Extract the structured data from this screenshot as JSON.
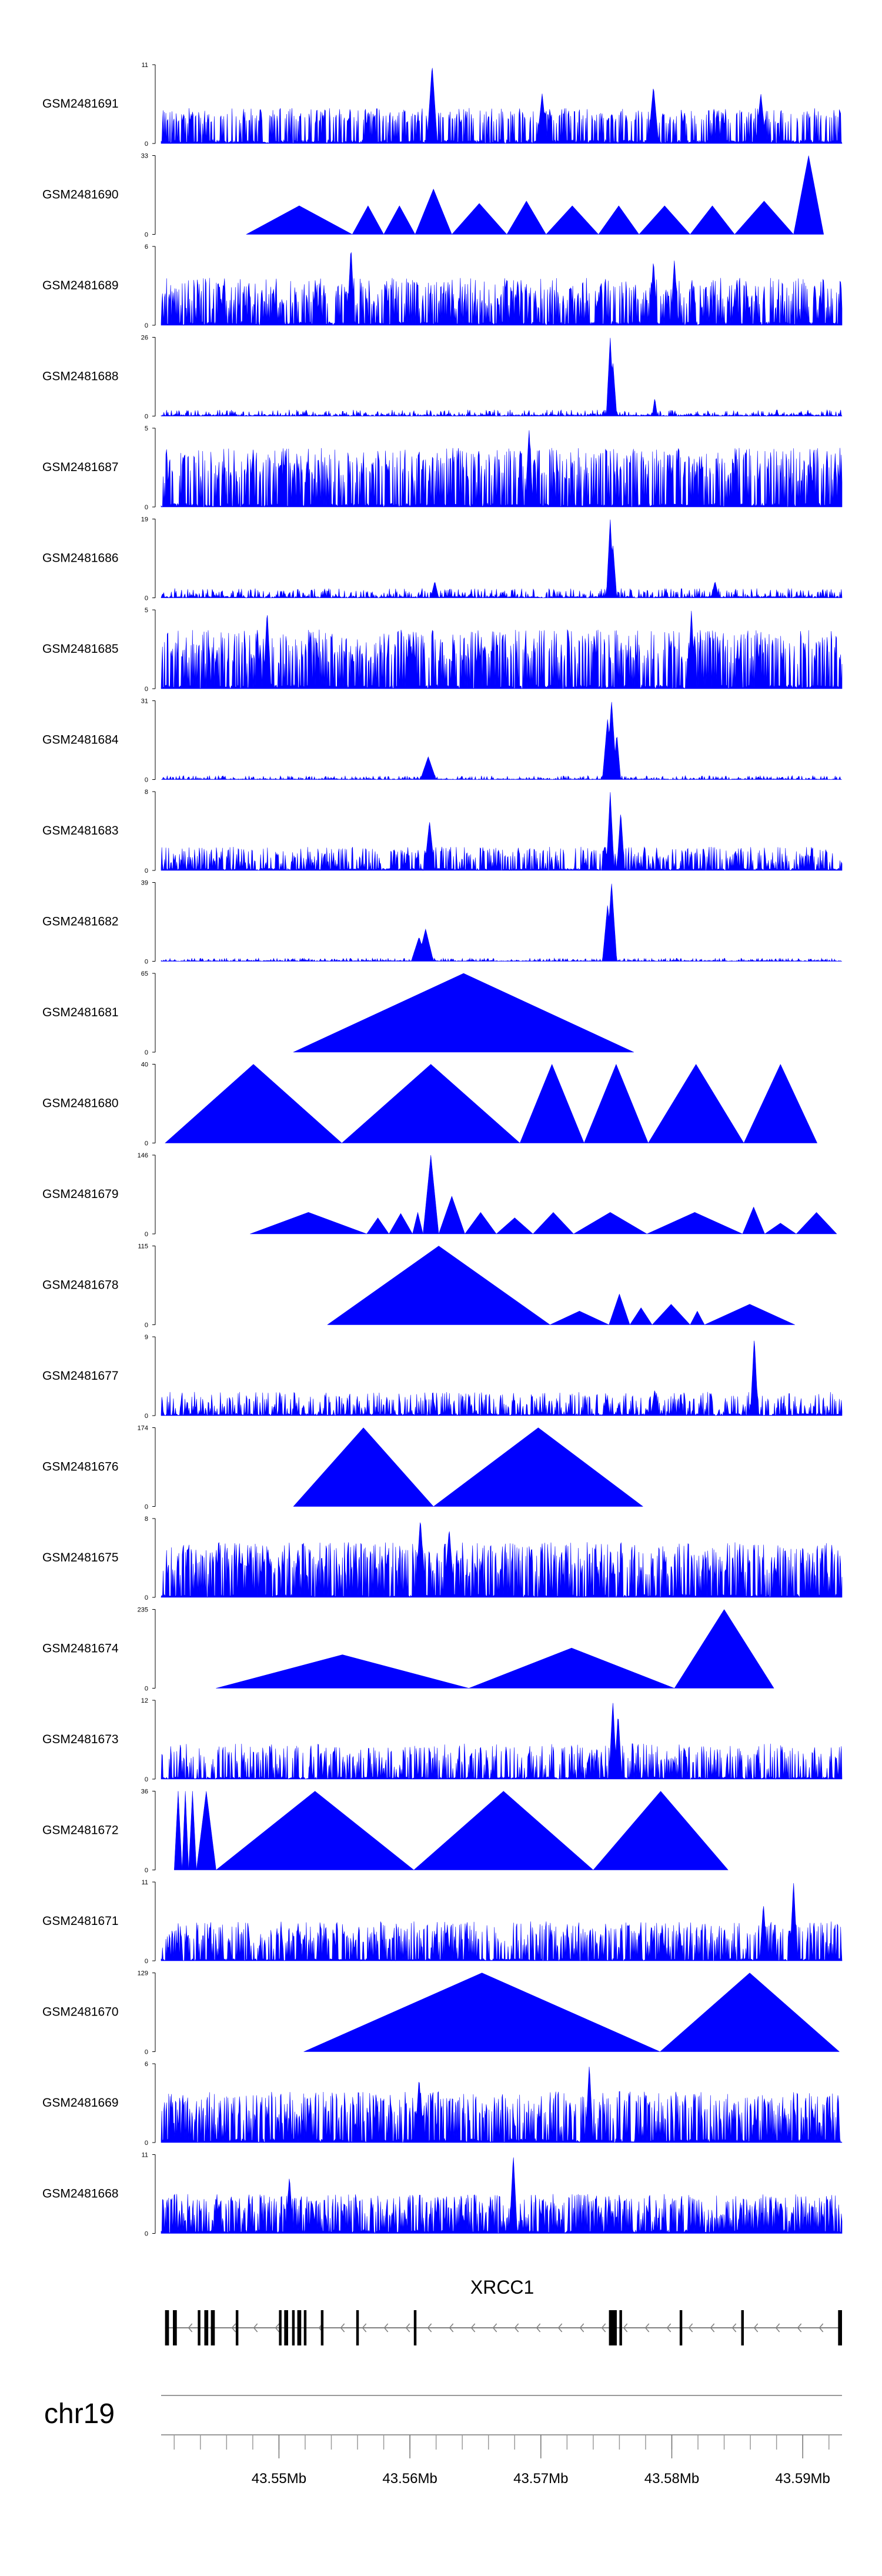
{
  "chart_data": {
    "type": "area",
    "title": "",
    "colors": {
      "fill": "#0000FF",
      "axis": "#000000",
      "gene": "#000000",
      "strand": "#808080"
    },
    "genome_axis": {
      "chromosome": "chr19",
      "range_mb": [
        43.541,
        43.593
      ],
      "labeled_ticks": [
        {
          "value": 43.55,
          "label": "43.55Mb"
        },
        {
          "value": 43.56,
          "label": "43.56Mb"
        },
        {
          "value": 43.57,
          "label": "43.57Mb"
        },
        {
          "value": 43.58,
          "label": "43.58Mb"
        },
        {
          "value": 43.59,
          "label": "43.59Mb"
        }
      ]
    },
    "gene": {
      "name": "XRCC1",
      "strand": "-",
      "start_mb": 43.5413,
      "end_mb": 43.5928,
      "exons_mb": [
        [
          43.5413,
          43.5416
        ],
        [
          43.5419,
          43.5422
        ],
        [
          43.5438,
          43.544
        ],
        [
          43.5443,
          43.5446
        ],
        [
          43.5448,
          43.5451
        ],
        [
          43.5467,
          43.5469
        ],
        [
          43.55,
          43.5502
        ],
        [
          43.5504,
          43.5507
        ],
        [
          43.551,
          43.5512
        ],
        [
          43.5514,
          43.5517
        ],
        [
          43.5519,
          43.5521
        ],
        [
          43.5532,
          43.5534
        ],
        [
          43.5559,
          43.5561
        ],
        [
          43.5603,
          43.5605
        ],
        [
          43.5752,
          43.5758
        ],
        [
          43.576,
          43.5762
        ],
        [
          43.5806,
          43.5808
        ],
        [
          43.5853,
          43.5855
        ],
        [
          43.5927,
          43.593
        ]
      ]
    },
    "tracks": [
      {
        "name": "GSM2481691",
        "ymax": 11,
        "nodata": [],
        "seed": 1691,
        "peaks": [
          [
            43.5617,
            11,
            0.0004
          ],
          [
            43.5701,
            7,
            0.0004
          ],
          [
            43.5786,
            8,
            0.0004
          ],
          [
            43.5868,
            7,
            0.0004
          ]
        ],
        "spikes": [
          0.25,
          0.45
        ],
        "density": 0.45,
        "base": 0.05
      },
      {
        "name": "GSM2481690",
        "ymax": 33,
        "nodata": [],
        "seed": 1690,
        "tri": [
          [
            43.5475,
            43.5556,
            12
          ],
          [
            43.5556,
            43.558,
            12
          ],
          [
            43.558,
            43.5604,
            12
          ],
          [
            43.5604,
            43.5632,
            19
          ],
          [
            43.5632,
            43.5674,
            13
          ],
          [
            43.5674,
            43.5704,
            14
          ],
          [
            43.5704,
            43.5744,
            12
          ],
          [
            43.5744,
            43.5775,
            12
          ],
          [
            43.5775,
            43.5814,
            12
          ],
          [
            43.5814,
            43.5848,
            12
          ],
          [
            43.5848,
            43.5893,
            14
          ],
          [
            43.5893,
            43.5916,
            33
          ]
        ],
        "spikes": [
          0,
          0
        ],
        "density": 0
      },
      {
        "name": "GSM2481689",
        "ymax": 6,
        "nodata": [],
        "seed": 1689,
        "peaks": [
          [
            43.5555,
            6,
            0.0003
          ],
          [
            43.5802,
            5,
            0.0003
          ],
          [
            43.5786,
            5,
            0.0003
          ]
        ],
        "spikes": [
          0.2,
          0.6
        ],
        "density": 0.55,
        "base": 0.05
      },
      {
        "name": "GSM2481688",
        "ymax": 26,
        "nodata": [],
        "seed": 1688,
        "peaks": [
          [
            43.5753,
            26,
            0.0003
          ],
          [
            43.5755,
            18,
            0.0003
          ],
          [
            43.5787,
            6,
            0.0002
          ]
        ],
        "spikes": [
          0.01,
          0.08
        ],
        "density": 0.3,
        "base": 0.02
      },
      {
        "name": "GSM2481687",
        "ymax": 5,
        "nodata": [],
        "seed": 1687,
        "peaks": [
          [
            43.5691,
            5,
            0.0003
          ]
        ],
        "spikes": [
          0.3,
          0.75
        ],
        "density": 0.55,
        "base": 0.05
      },
      {
        "name": "GSM2481686",
        "ymax": 19,
        "nodata": [],
        "seed": 1686,
        "peaks": [
          [
            43.5753,
            19,
            0.0003
          ],
          [
            43.5755,
            13,
            0.0003
          ],
          [
            43.5833,
            4,
            0.0003
          ],
          [
            43.5619,
            4,
            0.0003
          ]
        ],
        "spikes": [
          0.02,
          0.12
        ],
        "density": 0.35,
        "base": 0.02
      },
      {
        "name": "GSM2481685",
        "ymax": 5,
        "nodata": [],
        "seed": 1685,
        "peaks": [
          [
            43.5491,
            5,
            0.0003
          ],
          [
            43.5815,
            5,
            0.0003
          ]
        ],
        "spikes": [
          0.3,
          0.75
        ],
        "density": 0.6,
        "base": 0.05
      },
      {
        "name": "GSM2481684",
        "ymax": 31,
        "nodata": [],
        "seed": 1684,
        "peaks": [
          [
            43.5754,
            31,
            0.0004
          ],
          [
            43.5751,
            24,
            0.0004
          ],
          [
            43.5758,
            18,
            0.0003
          ],
          [
            43.5614,
            9,
            0.0006
          ]
        ],
        "spikes": [
          0.01,
          0.05
        ],
        "density": 0.3,
        "base": 0.01
      },
      {
        "name": "GSM2481683",
        "ymax": 8,
        "nodata": [],
        "seed": 1683,
        "peaks": [
          [
            43.5753,
            8,
            0.0003
          ],
          [
            43.5761,
            6,
            0.0003
          ],
          [
            43.5615,
            5,
            0.0004
          ]
        ],
        "spikes": [
          0.08,
          0.3
        ],
        "density": 0.45,
        "base": 0.03
      },
      {
        "name": "GSM2481682",
        "ymax": 39,
        "nodata": [],
        "seed": 1682,
        "peaks": [
          [
            43.5754,
            39,
            0.0004
          ],
          [
            43.5751,
            28,
            0.0004
          ],
          [
            43.5612,
            16,
            0.0006
          ],
          [
            43.5607,
            12,
            0.0006
          ]
        ],
        "spikes": [
          0.01,
          0.04
        ],
        "density": 0.3,
        "base": 0.01
      },
      {
        "name": "GSM2481681",
        "ymax": 65,
        "nodata": [],
        "seed": 1681,
        "tri": [
          [
            43.5511,
            43.5771,
            65
          ]
        ],
        "spikes": [
          0,
          0
        ],
        "density": 0
      },
      {
        "name": "GSM2481680",
        "ymax": 40,
        "nodata": [],
        "seed": 1680,
        "tri": [
          [
            43.5413,
            43.5548,
            40
          ],
          [
            43.5548,
            43.5684,
            40
          ],
          [
            43.5684,
            43.5733,
            40
          ],
          [
            43.5733,
            43.5782,
            40
          ],
          [
            43.5782,
            43.5855,
            40
          ],
          [
            43.5855,
            43.5911,
            40
          ]
        ],
        "spikes": [
          0,
          0
        ],
        "density": 0
      },
      {
        "name": "GSM2481679",
        "ymax": 146,
        "nodata": [],
        "seed": 1679,
        "tri": [
          [
            43.5478,
            43.5567,
            40
          ],
          [
            43.5567,
            43.5584,
            30
          ],
          [
            43.5584,
            43.5602,
            38
          ],
          [
            43.5602,
            43.561,
            40
          ],
          [
            43.561,
            43.5622,
            146
          ],
          [
            43.5622,
            43.5642,
            70
          ],
          [
            43.5642,
            43.5666,
            40
          ],
          [
            43.5666,
            43.5694,
            30
          ],
          [
            43.5694,
            43.5725,
            40
          ],
          [
            43.5725,
            43.5781,
            40
          ],
          [
            43.5781,
            43.5854,
            40
          ],
          [
            43.5854,
            43.5871,
            50
          ],
          [
            43.5871,
            43.5895,
            20
          ],
          [
            43.5895,
            43.5926,
            40
          ]
        ],
        "spikes": [
          0,
          0
        ],
        "density": 0
      },
      {
        "name": "GSM2481678",
        "ymax": 115,
        "nodata": [],
        "seed": 1678,
        "tri": [
          [
            43.5537,
            43.5707,
            115
          ],
          [
            43.5707,
            43.5752,
            20
          ],
          [
            43.5752,
            43.5768,
            45
          ],
          [
            43.5768,
            43.5785,
            25
          ],
          [
            43.5785,
            43.5814,
            30
          ],
          [
            43.5814,
            43.5825,
            20
          ],
          [
            43.5825,
            43.5894,
            30
          ]
        ],
        "spikes": [
          0,
          0
        ],
        "density": 0
      },
      {
        "name": "GSM2481677",
        "ymax": 9,
        "nodata": [],
        "seed": 1677,
        "peaks": [
          [
            43.5863,
            9,
            0.0003
          ],
          [
            43.5787,
            3,
            0.0003
          ]
        ],
        "spikes": [
          0.05,
          0.3
        ],
        "density": 0.45,
        "base": 0.03
      },
      {
        "name": "GSM2481676",
        "ymax": 174,
        "nodata": [],
        "seed": 1676,
        "tri": [
          [
            43.5511,
            43.5618,
            174
          ],
          [
            43.5618,
            43.5778,
            174
          ]
        ],
        "spikes": [
          0,
          0
        ],
        "density": 0
      },
      {
        "name": "GSM2481675",
        "ymax": 8,
        "nodata": [],
        "seed": 1675,
        "peaks": [
          [
            43.5608,
            8,
            0.0004
          ],
          [
            43.563,
            7,
            0.0004
          ]
        ],
        "spikes": [
          0.25,
          0.7
        ],
        "density": 0.6,
        "base": 0.04
      },
      {
        "name": "GSM2481674",
        "ymax": 235,
        "nodata": [],
        "seed": 1674,
        "tri": [
          [
            43.5452,
            43.5645,
            100
          ],
          [
            43.5645,
            43.5802,
            120
          ],
          [
            43.5802,
            43.5878,
            235
          ]
        ],
        "spikes": [
          0,
          0
        ],
        "density": 0
      },
      {
        "name": "GSM2481673",
        "ymax": 12,
        "nodata": [],
        "seed": 1673,
        "peaks": [
          [
            43.5755,
            12,
            0.0003
          ],
          [
            43.5759,
            10,
            0.0003
          ]
        ],
        "spikes": [
          0.12,
          0.45
        ],
        "density": 0.45,
        "base": 0.03
      },
      {
        "name": "GSM2481672",
        "ymax": 36,
        "nodata": [],
        "seed": 1672,
        "tri": [
          [
            43.542,
            43.5426,
            36
          ],
          [
            43.5426,
            43.5431,
            36
          ],
          [
            43.5431,
            43.5437,
            36
          ],
          [
            43.5437,
            43.5452,
            36
          ],
          [
            43.5452,
            43.5603,
            36
          ],
          [
            43.5603,
            43.574,
            36
          ],
          [
            43.574,
            43.5843,
            36
          ]
        ],
        "spikes": [
          0,
          0
        ],
        "density": 0
      },
      {
        "name": "GSM2481671",
        "ymax": 11,
        "nodata": [],
        "seed": 1671,
        "peaks": [
          [
            43.5893,
            11,
            0.0003
          ],
          [
            43.587,
            8,
            0.0003
          ]
        ],
        "spikes": [
          0.15,
          0.5
        ],
        "density": 0.55,
        "base": 0.03
      },
      {
        "name": "GSM2481670",
        "ymax": 129,
        "nodata": [],
        "seed": 1670,
        "tri": [
          [
            43.5519,
            43.5791,
            129
          ],
          [
            43.5791,
            43.5928,
            129
          ]
        ],
        "spikes": [
          0,
          0
        ],
        "density": 0
      },
      {
        "name": "GSM2481669",
        "ymax": 6,
        "nodata": [],
        "seed": 1669,
        "peaks": [
          [
            43.5737,
            6,
            0.0003
          ],
          [
            43.5607,
            5,
            0.0003
          ]
        ],
        "spikes": [
          0.2,
          0.65
        ],
        "density": 0.6,
        "base": 0.05
      },
      {
        "name": "GSM2481668",
        "ymax": 11,
        "nodata": [],
        "seed": 1668,
        "peaks": [
          [
            43.5679,
            11,
            0.0003
          ],
          [
            43.5508,
            8,
            0.0003
          ]
        ],
        "spikes": [
          0.15,
          0.5
        ],
        "density": 0.6,
        "base": 0.05
      }
    ]
  }
}
